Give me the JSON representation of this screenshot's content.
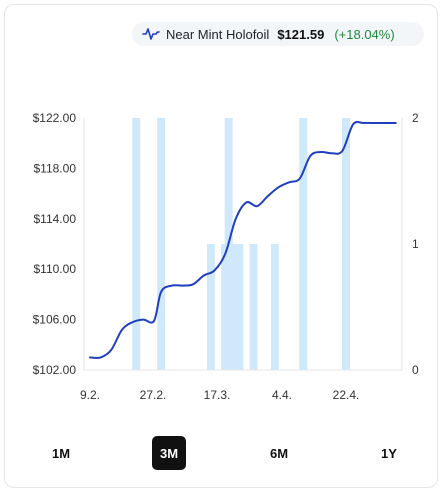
{
  "legend": {
    "icon": "line-chart-icon",
    "name": "Near Mint Holofoil",
    "price": "$121.59",
    "change": "(+18.04%)",
    "line_color": "#1f3fbf",
    "change_color": "#1e8a3a"
  },
  "ranges": [
    {
      "label": "1M",
      "active": false
    },
    {
      "label": "3M",
      "active": true
    },
    {
      "label": "6M",
      "active": false
    },
    {
      "label": "1Y",
      "active": false
    }
  ],
  "chart_data": {
    "type": "line",
    "title": "",
    "xlabel": "",
    "ylabel": "",
    "x_ticks": [
      "9.2.",
      "27.2.",
      "17.3.",
      "4.4.",
      "22.4."
    ],
    "y_ticks": [
      "$102.00",
      "$106.00",
      "$110.00",
      "$114.00",
      "$118.00",
      "$122.00"
    ],
    "y2_ticks": [
      "0",
      "1",
      "2"
    ],
    "ylim": [
      102,
      122
    ],
    "y2lim": [
      0,
      2
    ],
    "grid": false,
    "series": [
      {
        "type": "line",
        "color": "#1f3fbf",
        "x": [
          "2.9",
          "2.12",
          "2.15",
          "2.18",
          "2.21",
          "2.24",
          "2.27",
          "3.1",
          "3.4",
          "3.7",
          "3.10",
          "3.13",
          "3.16",
          "3.19",
          "3.22",
          "3.25",
          "3.28",
          "3.31",
          "4.3",
          "4.6",
          "4.9",
          "4.12",
          "4.15",
          "4.18",
          "4.21",
          "4.24",
          "4.27",
          "4.30",
          "5.3",
          "5.6"
        ],
        "values": [
          103.0,
          103.0,
          103.6,
          105.2,
          105.8,
          106.0,
          105.9,
          108.2,
          108.7,
          108.7,
          108.8,
          109.5,
          109.9,
          111.2,
          114.0,
          115.3,
          115.0,
          115.8,
          116.5,
          116.9,
          117.2,
          119.0,
          119.3,
          119.2,
          119.4,
          121.5,
          121.6,
          121.6,
          121.6,
          121.6
        ]
      },
      {
        "type": "bar",
        "color": "#cfe9fb",
        "axis": "right",
        "x": [
          "2.22",
          "3.1",
          "3.15",
          "3.19",
          "3.20",
          "3.22",
          "3.23",
          "3.27",
          "4.2",
          "4.10",
          "4.22"
        ],
        "values": [
          2,
          2,
          1,
          1,
          2,
          1,
          1,
          1,
          1,
          2,
          2
        ]
      }
    ]
  }
}
